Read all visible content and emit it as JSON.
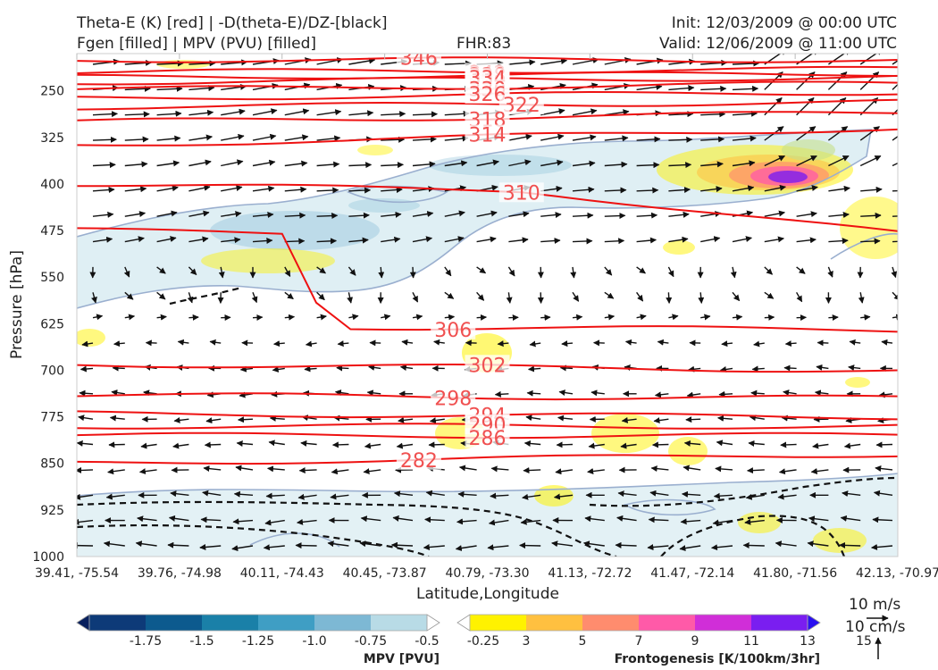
{
  "header": {
    "line1_left": "Theta-E (K) [red] | -D(theta-E)/DZ-[black]",
    "line2_left": "Fgen [filled] | MPV (PVU) [filled]",
    "fhr": "FHR:83",
    "init": "Init: 12/03/2009 @ 00:00 UTC",
    "valid": "Valid: 12/06/2009 @ 11:00 UTC"
  },
  "chart_data": {
    "type": "cross-section",
    "xlabel": "Latitude,Longitude",
    "ylabel": "Pressure [hPa]",
    "x_ticks": [
      "39.41, -75.54",
      "39.76, -74.98",
      "40.11, -74.43",
      "40.45, -73.87",
      "40.79, -73.30",
      "41.13, -72.72",
      "41.47, -72.14",
      "41.80, -71.56",
      "42.13, -70.97"
    ],
    "y_ticks": [
      "250",
      "325",
      "400",
      "475",
      "550",
      "625",
      "700",
      "775",
      "850",
      "925",
      "1000"
    ],
    "y_values": [
      250,
      325,
      400,
      475,
      550,
      625,
      700,
      775,
      850,
      925,
      1000
    ],
    "ylim": [
      1000,
      190
    ],
    "theta_e_contours": [
      {
        "value": 346,
        "label": "346",
        "p_left": 200,
        "p_right": 200
      },
      {
        "value": 342,
        "label": "342",
        "p_left": 220,
        "p_right": 215
      },
      {
        "value": 338,
        "label": "338",
        "p_left": 228,
        "p_right": 222
      },
      {
        "value": 334,
        "label": "334",
        "p_left": 236,
        "p_right": 228
      },
      {
        "value": 330,
        "label": "330",
        "p_left": 248,
        "p_right": 238
      },
      {
        "value": 326,
        "label": "326",
        "p_left": 262,
        "p_right": 252
      },
      {
        "value": 322,
        "label": "322",
        "p_left": 276,
        "p_right": 268
      },
      {
        "value": 318,
        "label": "318",
        "p_left": 300,
        "p_right": 285
      },
      {
        "value": 314,
        "label": "314",
        "p_left": 338,
        "p_right": 310
      },
      {
        "value": 310,
        "label": "310",
        "p_left": 400,
        "p_right": 480
      },
      {
        "value": 306,
        "label": "306",
        "p_left": 475,
        "p_right": 635
      },
      {
        "value": 302,
        "label": "302",
        "p_left": 690,
        "p_right": 700
      },
      {
        "value": 298,
        "label": "298",
        "p_left": 740,
        "p_right": 745
      },
      {
        "value": 294,
        "label": "294",
        "p_left": 770,
        "p_right": 775
      },
      {
        "value": 290,
        "label": "290",
        "p_left": 790,
        "p_right": 790
      },
      {
        "value": 286,
        "label": "286",
        "p_left": 805,
        "p_right": 805
      },
      {
        "value": 282,
        "label": "282",
        "p_left": 850,
        "p_right": 835
      }
    ],
    "wind_scale": {
      "horizontal": "10 m/s",
      "vertical": "10 cm/s"
    },
    "colorbars": [
      {
        "title": "MPV [PVU]",
        "ticks": [
          "-1.75",
          "-1.5",
          "-1.25",
          "-1.0",
          "-0.75",
          "-0.5",
          "-0.25"
        ],
        "colors": [
          "#08205e",
          "#0d3a78",
          "#0c5a8e",
          "#1a80a8",
          "#3f9ec4",
          "#7db8d4",
          "#b8dbe6",
          "#ffffff"
        ]
      },
      {
        "title": "Frontogenesis [K/100km/3hr]",
        "ticks": [
          "3",
          "5",
          "7",
          "9",
          "11",
          "13",
          "15"
        ],
        "colors": [
          "#ffffff",
          "#fff200",
          "#ffc040",
          "#ff8c6e",
          "#ff5aa8",
          "#d02ed8",
          "#7a1ef0",
          "#2a10f0"
        ]
      }
    ]
  }
}
